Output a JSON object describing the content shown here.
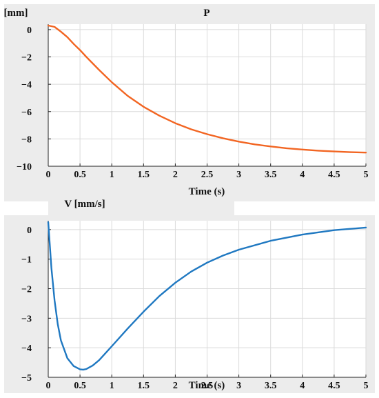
{
  "colors": {
    "panel_background": "#ececec",
    "plot_background": "#ffffff",
    "grid": "#dadada",
    "axis": "#222222",
    "position_line": "#f26522",
    "velocity_line": "#1f78c1"
  },
  "chart_data": [
    {
      "type": "line",
      "title": "P",
      "ylabel": "[mm]",
      "xlabel": "Time (s)",
      "xlim": [
        0,
        5
      ],
      "ylim": [
        -10,
        0.4
      ],
      "xticks": [
        0,
        0.5,
        1,
        1.5,
        2,
        2.5,
        3,
        3.5,
        4,
        4.5,
        5
      ],
      "xtick_labels": [
        "0",
        "0.5",
        "1",
        "1.5",
        "2",
        "2.5",
        "3",
        "3.5",
        "4",
        "4.5",
        "5"
      ],
      "yticks": [
        0,
        -2,
        -4,
        -6,
        -8,
        -10
      ],
      "ytick_labels": [
        "0",
        "−2",
        "−4",
        "−6",
        "−8",
        "−10"
      ],
      "grid": true,
      "series": [
        {
          "color": "#f26522",
          "x": [
            0,
            0.1,
            0.2,
            0.3,
            0.4,
            0.5,
            0.6,
            0.8,
            1.0,
            1.25,
            1.5,
            1.75,
            2.0,
            2.25,
            2.5,
            2.75,
            3.0,
            3.25,
            3.5,
            3.75,
            4.0,
            4.25,
            4.5,
            4.75,
            5.0
          ],
          "y": [
            0.3,
            0.2,
            -0.15,
            -0.55,
            -1.05,
            -1.5,
            -2.0,
            -2.95,
            -3.85,
            -4.85,
            -5.65,
            -6.3,
            -6.85,
            -7.3,
            -7.65,
            -7.95,
            -8.2,
            -8.4,
            -8.55,
            -8.68,
            -8.78,
            -8.86,
            -8.92,
            -8.97,
            -9.0
          ]
        }
      ]
    },
    {
      "type": "line",
      "title": "V [mm/s]",
      "ylabel": "",
      "xlabel": "Time (s)",
      "xlim": [
        0,
        5
      ],
      "ylim": [
        -5,
        0.3
      ],
      "xticks": [
        0,
        0.5,
        1,
        1.5,
        2,
        2.5,
        3,
        3.5,
        4,
        4.5,
        5
      ],
      "xtick_labels": [
        "0",
        "0.5",
        "1",
        "1.5",
        "2",
        "2.5",
        "3",
        "3.5",
        "4",
        "4.5",
        "5"
      ],
      "yticks": [
        0,
        -1,
        -2,
        -3,
        -4,
        -5
      ],
      "ytick_labels": [
        "0",
        "−1",
        "−2",
        "−3",
        "−4",
        "−5"
      ],
      "grid": true,
      "series": [
        {
          "color": "#1f78c1",
          "x": [
            0,
            0.05,
            0.1,
            0.15,
            0.2,
            0.3,
            0.4,
            0.5,
            0.55,
            0.6,
            0.7,
            0.8,
            1.0,
            1.25,
            1.5,
            1.75,
            2.0,
            2.25,
            2.5,
            2.75,
            3.0,
            3.5,
            4.0,
            4.5,
            5.0
          ],
          "y": [
            0.25,
            -1.3,
            -2.4,
            -3.2,
            -3.75,
            -4.35,
            -4.62,
            -4.73,
            -4.74,
            -4.72,
            -4.6,
            -4.42,
            -3.95,
            -3.35,
            -2.78,
            -2.25,
            -1.8,
            -1.42,
            -1.12,
            -0.88,
            -0.68,
            -0.38,
            -0.17,
            -0.02,
            0.07
          ]
        }
      ]
    }
  ]
}
